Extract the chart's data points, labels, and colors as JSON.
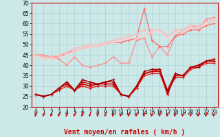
{
  "xlabel": "Vent moyen/en rafales ( km/h )",
  "bg_color": "#cce8e8",
  "grid_color": "#aad4d4",
  "xlim": [
    -0.5,
    23.5
  ],
  "ylim": [
    20,
    70
  ],
  "yticks": [
    20,
    25,
    30,
    35,
    40,
    45,
    50,
    55,
    60,
    65,
    70
  ],
  "xticks": [
    0,
    1,
    2,
    3,
    4,
    5,
    6,
    7,
    8,
    9,
    10,
    11,
    12,
    13,
    14,
    15,
    16,
    17,
    18,
    19,
    20,
    21,
    22,
    23
  ],
  "lines": [
    {
      "y": [
        45,
        45,
        44,
        43,
        40,
        44,
        40,
        39,
        40,
        41,
        44,
        41,
        41,
        52,
        53,
        44,
        49,
        45,
        54,
        57,
        59,
        58,
        62,
        63
      ],
      "color": "#ff9090",
      "lw": 1.0,
      "ms": 2.0
    },
    {
      "y": [
        45,
        44,
        44,
        44,
        46,
        47,
        48,
        49,
        49,
        50,
        51,
        51,
        52,
        53,
        67,
        52,
        49,
        49,
        54,
        55,
        57,
        57,
        59,
        60
      ],
      "color": "#ff7070",
      "lw": 1.0,
      "ms": 2.0
    },
    {
      "y": [
        45,
        44,
        44,
        45,
        46,
        48,
        49,
        50,
        50,
        51,
        52,
        53,
        54,
        55,
        57,
        57,
        57,
        54,
        57,
        57,
        59,
        59,
        61,
        62
      ],
      "color": "#ffbbbb",
      "lw": 1.0,
      "ms": 2.0
    },
    {
      "y": [
        44,
        43,
        43,
        44,
        45,
        47,
        48,
        49,
        49,
        50,
        51,
        52,
        53,
        53,
        55,
        56,
        56,
        53,
        56,
        56,
        58,
        58,
        60,
        61
      ],
      "color": "#ffcccc",
      "lw": 1.0,
      "ms": 2.0
    },
    {
      "y": [
        26,
        25,
        26,
        29,
        31,
        28,
        31,
        30,
        31,
        31,
        31,
        26,
        25,
        29,
        36,
        37,
        37,
        26,
        35,
        35,
        39,
        40,
        42,
        42
      ],
      "color": "#cc0000",
      "lw": 1.2,
      "ms": 2.0
    },
    {
      "y": [
        26,
        25,
        26,
        28,
        30,
        28,
        30,
        29,
        30,
        30,
        30,
        26,
        25,
        29,
        35,
        36,
        36,
        27,
        34,
        34,
        38,
        39,
        41,
        41
      ],
      "color": "#dd2222",
      "lw": 1.0,
      "ms": 2.0
    },
    {
      "y": [
        26,
        25,
        26,
        29,
        32,
        28,
        32,
        31,
        31,
        32,
        32,
        26,
        25,
        30,
        36,
        37,
        38,
        27,
        35,
        35,
        39,
        39,
        42,
        42
      ],
      "color": "#bb0000",
      "lw": 1.0,
      "ms": 2.0
    },
    {
      "y": [
        26,
        25,
        26,
        29,
        32,
        28,
        33,
        32,
        31,
        32,
        33,
        26,
        25,
        30,
        37,
        38,
        38,
        28,
        36,
        35,
        39,
        40,
        42,
        43
      ],
      "color": "#aa0000",
      "lw": 1.0,
      "ms": 2.0
    }
  ],
  "fontsize_xlabel": 7.0,
  "fontsize_ticks": 5.5
}
